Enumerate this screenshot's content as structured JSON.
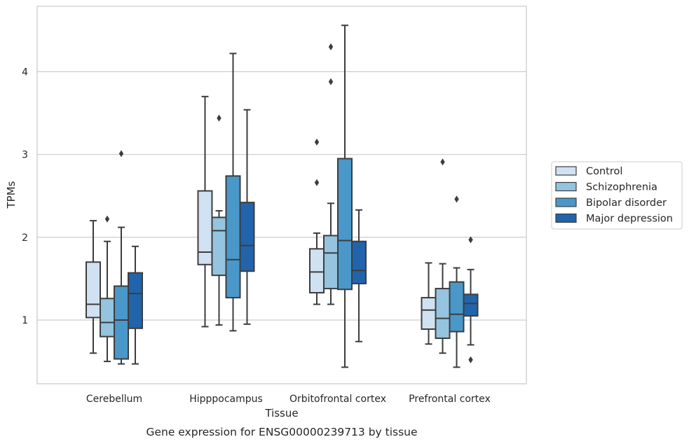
{
  "chart_data": {
    "type": "boxplot",
    "xlabel": "Tissue",
    "ylabel": "TPMs",
    "caption": "Gene expression for ENSG00000239713 by tissue",
    "categories": [
      "Cerebellum",
      "Hipppocampus",
      "Orbitofrontal cortex",
      "Prefrontal cortex"
    ],
    "ylim": [
      0.23,
      4.79
    ],
    "yticks": [
      1,
      2,
      3,
      4
    ],
    "grid": "horizontal",
    "legend_position": "right",
    "series": [
      {
        "name": "Control",
        "color": "#d0e1f2",
        "boxes": [
          {
            "whisker_low": 0.6,
            "q1": 1.03,
            "median": 1.19,
            "q3": 1.7,
            "whisker_high": 2.2,
            "fliers": []
          },
          {
            "whisker_low": 0.92,
            "q1": 1.67,
            "median": 1.82,
            "q3": 2.56,
            "whisker_high": 3.7,
            "fliers": []
          },
          {
            "whisker_low": 1.19,
            "q1": 1.33,
            "median": 1.58,
            "q3": 1.86,
            "whisker_high": 2.05,
            "fliers": [
              2.66,
              3.15
            ]
          },
          {
            "whisker_low": 0.71,
            "q1": 0.89,
            "median": 1.12,
            "q3": 1.27,
            "whisker_high": 1.69,
            "fliers": []
          }
        ]
      },
      {
        "name": "Schizophrenia",
        "color": "#94c4df",
        "boxes": [
          {
            "whisker_low": 0.5,
            "q1": 0.8,
            "median": 0.97,
            "q3": 1.26,
            "whisker_high": 1.95,
            "fliers": [
              2.22
            ]
          },
          {
            "whisker_low": 0.94,
            "q1": 1.54,
            "median": 2.08,
            "q3": 2.24,
            "whisker_high": 2.32,
            "fliers": [
              3.44
            ]
          },
          {
            "whisker_low": 1.19,
            "q1": 1.38,
            "median": 1.81,
            "q3": 2.02,
            "whisker_high": 2.41,
            "fliers": [
              3.88,
              4.3
            ]
          },
          {
            "whisker_low": 0.6,
            "q1": 0.78,
            "median": 1.02,
            "q3": 1.38,
            "whisker_high": 1.68,
            "fliers": [
              2.91
            ]
          }
        ]
      },
      {
        "name": "Bipolar disorder",
        "color": "#4a98c9",
        "boxes": [
          {
            "whisker_low": 0.47,
            "q1": 0.53,
            "median": 1.0,
            "q3": 1.41,
            "whisker_high": 2.12,
            "fliers": [
              3.01
            ]
          },
          {
            "whisker_low": 0.87,
            "q1": 1.27,
            "median": 1.73,
            "q3": 2.74,
            "whisker_high": 4.22,
            "fliers": []
          },
          {
            "whisker_low": 0.43,
            "q1": 1.37,
            "median": 1.96,
            "q3": 2.95,
            "whisker_high": 4.56,
            "fliers": []
          },
          {
            "whisker_low": 0.43,
            "q1": 0.86,
            "median": 1.07,
            "q3": 1.46,
            "whisker_high": 1.63,
            "fliers": [
              2.46
            ]
          }
        ]
      },
      {
        "name": "Major depression",
        "color": "#2164ab",
        "boxes": [
          {
            "whisker_low": 0.47,
            "q1": 0.9,
            "median": 1.32,
            "q3": 1.57,
            "whisker_high": 1.89,
            "fliers": []
          },
          {
            "whisker_low": 0.95,
            "q1": 1.59,
            "median": 1.9,
            "q3": 2.42,
            "whisker_high": 3.54,
            "fliers": []
          },
          {
            "whisker_low": 0.74,
            "q1": 1.44,
            "median": 1.6,
            "q3": 1.95,
            "whisker_high": 2.33,
            "fliers": []
          },
          {
            "whisker_low": 0.7,
            "q1": 1.05,
            "median": 1.2,
            "q3": 1.31,
            "whisker_high": 1.61,
            "fliers": [
              0.52,
              1.97
            ]
          }
        ]
      }
    ]
  }
}
